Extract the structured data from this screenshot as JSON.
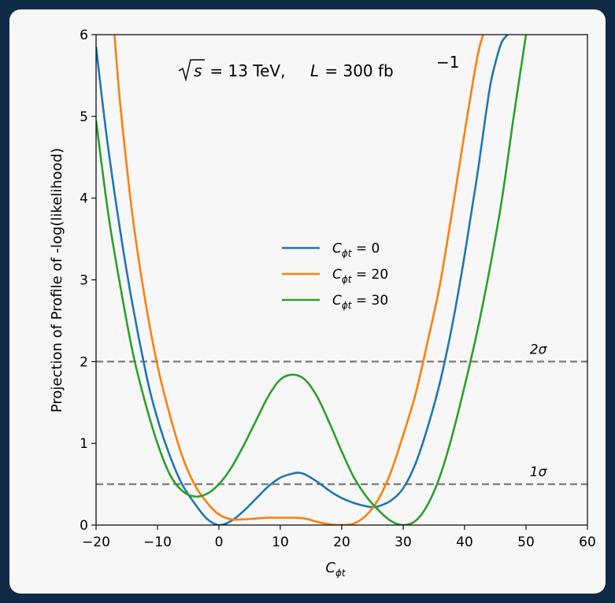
{
  "chart_data": {
    "type": "line",
    "annotation": {
      "prefix": "s",
      "text": " = 13 TeV, ",
      "lumi_symbol": "L",
      "lumi_text": " = 300 fb",
      "lumi_exp": "−1"
    },
    "xlabel": {
      "base": "C",
      "sub": "ϕt"
    },
    "ylabel": "Projection of Profile of -log(likelihood)",
    "xlim": [
      -20,
      60
    ],
    "ylim": [
      0,
      6
    ],
    "xticks": [
      "−20",
      "−10",
      "0",
      "10",
      "20",
      "30",
      "40",
      "50",
      "60"
    ],
    "yticks": [
      "0",
      "1",
      "2",
      "3",
      "4",
      "5",
      "6"
    ],
    "grid": false,
    "legend_position": "center",
    "series": [
      {
        "name": "C_{ϕt} = 0",
        "legend": {
          "base": "C",
          "sub": "ϕt",
          "rest": " = 0"
        },
        "color": "#1f77b4",
        "x": [
          -20,
          -18,
          -15,
          -12,
          -10,
          -8,
          -6,
          -4,
          -2,
          0,
          2,
          4,
          6,
          8,
          10,
          12,
          13,
          14,
          16,
          18,
          20,
          22,
          24,
          25,
          26,
          28,
          30,
          32,
          34,
          36,
          38,
          40,
          42,
          44,
          45,
          46,
          47
        ],
        "y": [
          5.85,
          4.6,
          3.1,
          1.9,
          1.3,
          0.85,
          0.5,
          0.27,
          0.08,
          0.0,
          0.05,
          0.17,
          0.32,
          0.47,
          0.58,
          0.63,
          0.64,
          0.62,
          0.53,
          0.42,
          0.33,
          0.27,
          0.23,
          0.22,
          0.23,
          0.3,
          0.45,
          0.75,
          1.2,
          1.75,
          2.45,
          3.3,
          4.25,
          5.3,
          5.65,
          5.9,
          6.0
        ]
      },
      {
        "name": "C_{ϕt} = 20",
        "legend": {
          "base": "C",
          "sub": "ϕt",
          "rest": " = 20"
        },
        "color": "#ff7f0e",
        "x": [
          -17,
          -16,
          -14,
          -12,
          -10,
          -8,
          -6,
          -4,
          -2,
          0,
          2,
          4,
          6,
          8,
          10,
          12,
          14,
          16,
          18,
          20,
          22,
          24,
          26,
          28,
          30,
          32,
          34,
          36,
          38,
          40,
          42,
          43
        ],
        "y": [
          6.0,
          5.1,
          3.75,
          2.75,
          1.95,
          1.35,
          0.85,
          0.5,
          0.28,
          0.13,
          0.07,
          0.07,
          0.08,
          0.09,
          0.09,
          0.09,
          0.08,
          0.04,
          0.01,
          0.0,
          0.02,
          0.12,
          0.32,
          0.65,
          1.1,
          1.6,
          2.25,
          2.95,
          3.85,
          4.8,
          5.7,
          6.0
        ]
      },
      {
        "name": "C_{ϕt} = 30",
        "legend": {
          "base": "C",
          "sub": "ϕt",
          "rest": " = 30"
        },
        "color": "#2ca02c",
        "x": [
          -20,
          -18,
          -16,
          -14,
          -12,
          -10,
          -8,
          -6,
          -4,
          -2,
          0,
          2,
          4,
          6,
          8,
          10,
          12,
          14,
          16,
          18,
          20,
          22,
          24,
          26,
          28,
          30,
          32,
          34,
          36,
          38,
          40,
          42,
          44,
          46,
          48,
          50
        ],
        "y": [
          4.95,
          3.8,
          2.9,
          2.1,
          1.5,
          1.0,
          0.62,
          0.42,
          0.35,
          0.38,
          0.5,
          0.7,
          0.97,
          1.27,
          1.57,
          1.78,
          1.84,
          1.78,
          1.57,
          1.25,
          0.9,
          0.58,
          0.35,
          0.18,
          0.05,
          0.0,
          0.05,
          0.25,
          0.6,
          1.1,
          1.7,
          2.35,
          3.1,
          3.95,
          5.0,
          6.0
        ]
      }
    ],
    "reference_lines": [
      {
        "y": 2,
        "label": "2σ",
        "color": "#808080",
        "style": "dashed"
      },
      {
        "y": 0.5,
        "label": "1σ",
        "color": "#808080",
        "style": "dashed"
      }
    ]
  }
}
